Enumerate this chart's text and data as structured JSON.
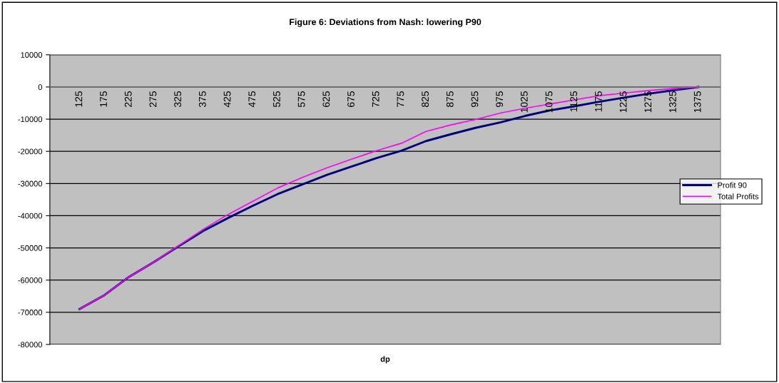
{
  "chart_data": {
    "type": "line",
    "title": "Figure 6: Deviations from Nash: lowering P90",
    "xlabel": "dp",
    "categories": [
      "125",
      "175",
      "225",
      "275",
      "325",
      "375",
      "425",
      "475",
      "525",
      "575",
      "625",
      "675",
      "725",
      "775",
      "825",
      "875",
      "925",
      "975",
      "1025",
      "1075",
      "1125",
      "1175",
      "1225",
      "1275",
      "1325",
      "1375"
    ],
    "series": [
      {
        "name": "Profit 90",
        "color": "#000080",
        "values": [
          -69000,
          -64700,
          -59000,
          -54400,
          -49500,
          -44700,
          -40700,
          -36900,
          -33300,
          -30300,
          -27300,
          -24700,
          -22100,
          -19800,
          -16800,
          -14700,
          -12700,
          -11000,
          -9000,
          -7300,
          -6000,
          -4600,
          -3300,
          -2100,
          -1000,
          0
        ]
      },
      {
        "name": "Total Profits",
        "color": "#ff00ff",
        "values": [
          -69000,
          -64700,
          -59000,
          -54400,
          -49300,
          -44200,
          -39600,
          -35500,
          -31400,
          -28100,
          -25100,
          -22400,
          -19800,
          -17500,
          -13800,
          -11800,
          -10100,
          -8100,
          -6600,
          -5300,
          -4000,
          -2700,
          -1900,
          -1100,
          -500,
          0
        ]
      }
    ],
    "ylim": [
      -80000,
      10000
    ],
    "yticks": [
      -80000,
      -70000,
      -60000,
      -50000,
      -40000,
      -30000,
      -20000,
      -10000,
      0,
      10000
    ],
    "grid": "y",
    "legend": "right",
    "marker": "none",
    "line_style": "solid"
  }
}
